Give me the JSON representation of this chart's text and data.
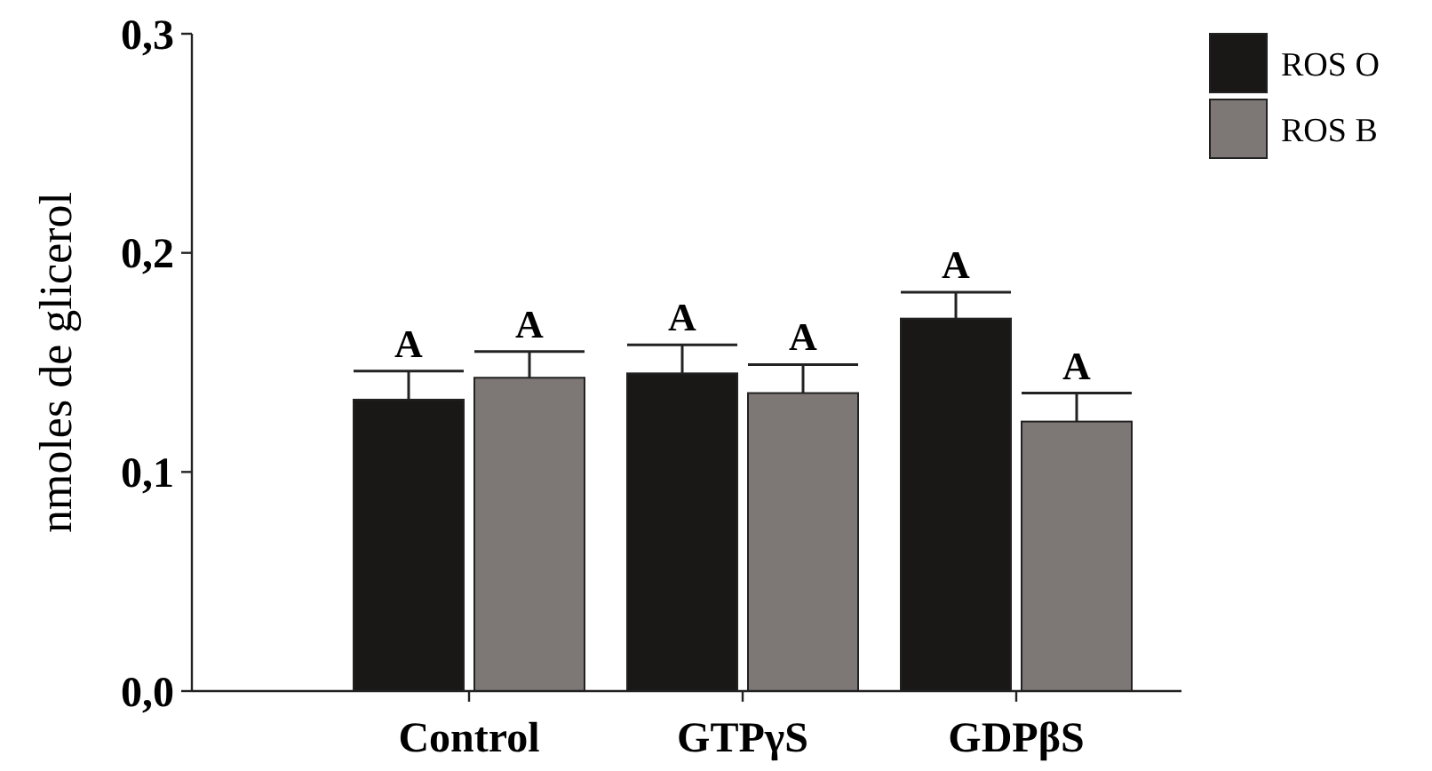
{
  "chart_data": {
    "type": "bar",
    "ylabel": "nmoles de glicerol",
    "categories": [
      "Control",
      "GTPγS",
      "GDPβS"
    ],
    "series": [
      {
        "name": "ROS O",
        "color": "#1a1816",
        "values": [
          0.133,
          0.145,
          0.17
        ],
        "errors": [
          [
            0.133,
            0.146
          ],
          [
            0.145,
            0.158
          ],
          [
            0.17,
            0.182
          ]
        ]
      },
      {
        "name": "ROS B",
        "color": "#7d7875",
        "values": [
          0.143,
          0.136,
          0.123
        ],
        "errors": [
          [
            0.143,
            0.155
          ],
          [
            0.136,
            0.149
          ],
          [
            0.123,
            0.136
          ]
        ]
      }
    ],
    "ylim": [
      0,
      0.3
    ],
    "yticks": [
      {
        "value": 0,
        "label": "0,0"
      },
      {
        "value": 0.1,
        "label": "0,1"
      },
      {
        "value": 0.2,
        "label": "0,2"
      },
      {
        "value": 0.3,
        "label": "0,3"
      }
    ],
    "annotations": [
      "A",
      "A",
      "A",
      "A",
      "A",
      "A"
    ],
    "legend": "top right",
    "grid": false
  }
}
